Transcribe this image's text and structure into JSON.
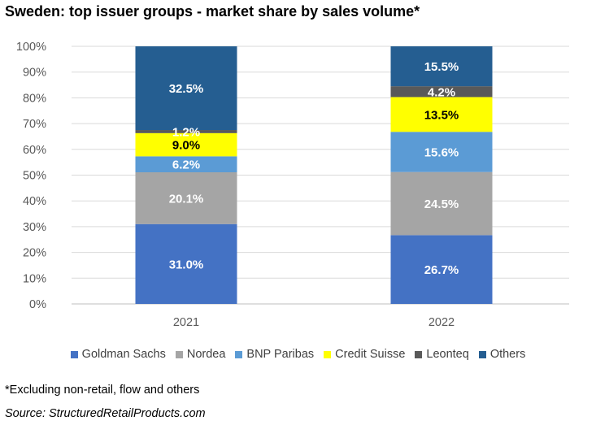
{
  "title": "Sweden: top issuer groups - market share by sales volume*",
  "footnote": "*Excluding non-retail, flow and others",
  "source": "Source: StructuredRetailProducts.com",
  "chart_data": {
    "type": "bar",
    "stacked": true,
    "categories": [
      "2021",
      "2022"
    ],
    "ylim": [
      0,
      100
    ],
    "y_ticks": [
      "0%",
      "10%",
      "20%",
      "30%",
      "40%",
      "50%",
      "60%",
      "70%",
      "80%",
      "90%",
      "100%"
    ],
    "grid": true,
    "legend_position": "bottom",
    "series": [
      {
        "name": "Goldman Sachs",
        "color": "#4472C4",
        "values": [
          31.0,
          26.7
        ],
        "labels": [
          "31.0%",
          "26.7%"
        ],
        "label_color": "#ffffff"
      },
      {
        "name": "Nordea",
        "color": "#A5A5A5",
        "values": [
          20.1,
          24.5
        ],
        "labels": [
          "20.1%",
          "24.5%"
        ],
        "label_color": "#ffffff"
      },
      {
        "name": "BNP Paribas",
        "color": "#5B9BD5",
        "values": [
          6.2,
          15.6
        ],
        "labels": [
          "6.2%",
          "15.6%"
        ],
        "label_color": "#ffffff"
      },
      {
        "name": "Credit Suisse",
        "color": "#FFFF00",
        "values": [
          9.0,
          13.5
        ],
        "labels": [
          "9.0%",
          "13.5%"
        ],
        "label_color": "#000000"
      },
      {
        "name": "Leonteq",
        "color": "#595959",
        "values": [
          1.2,
          4.2
        ],
        "labels": [
          "1.2%",
          "4.2%"
        ],
        "label_color": "#ffffff"
      },
      {
        "name": "Others",
        "color": "#255E91",
        "values": [
          32.5,
          15.5
        ],
        "labels": [
          "32.5%",
          "15.5%"
        ],
        "label_color": "#ffffff"
      }
    ]
  }
}
